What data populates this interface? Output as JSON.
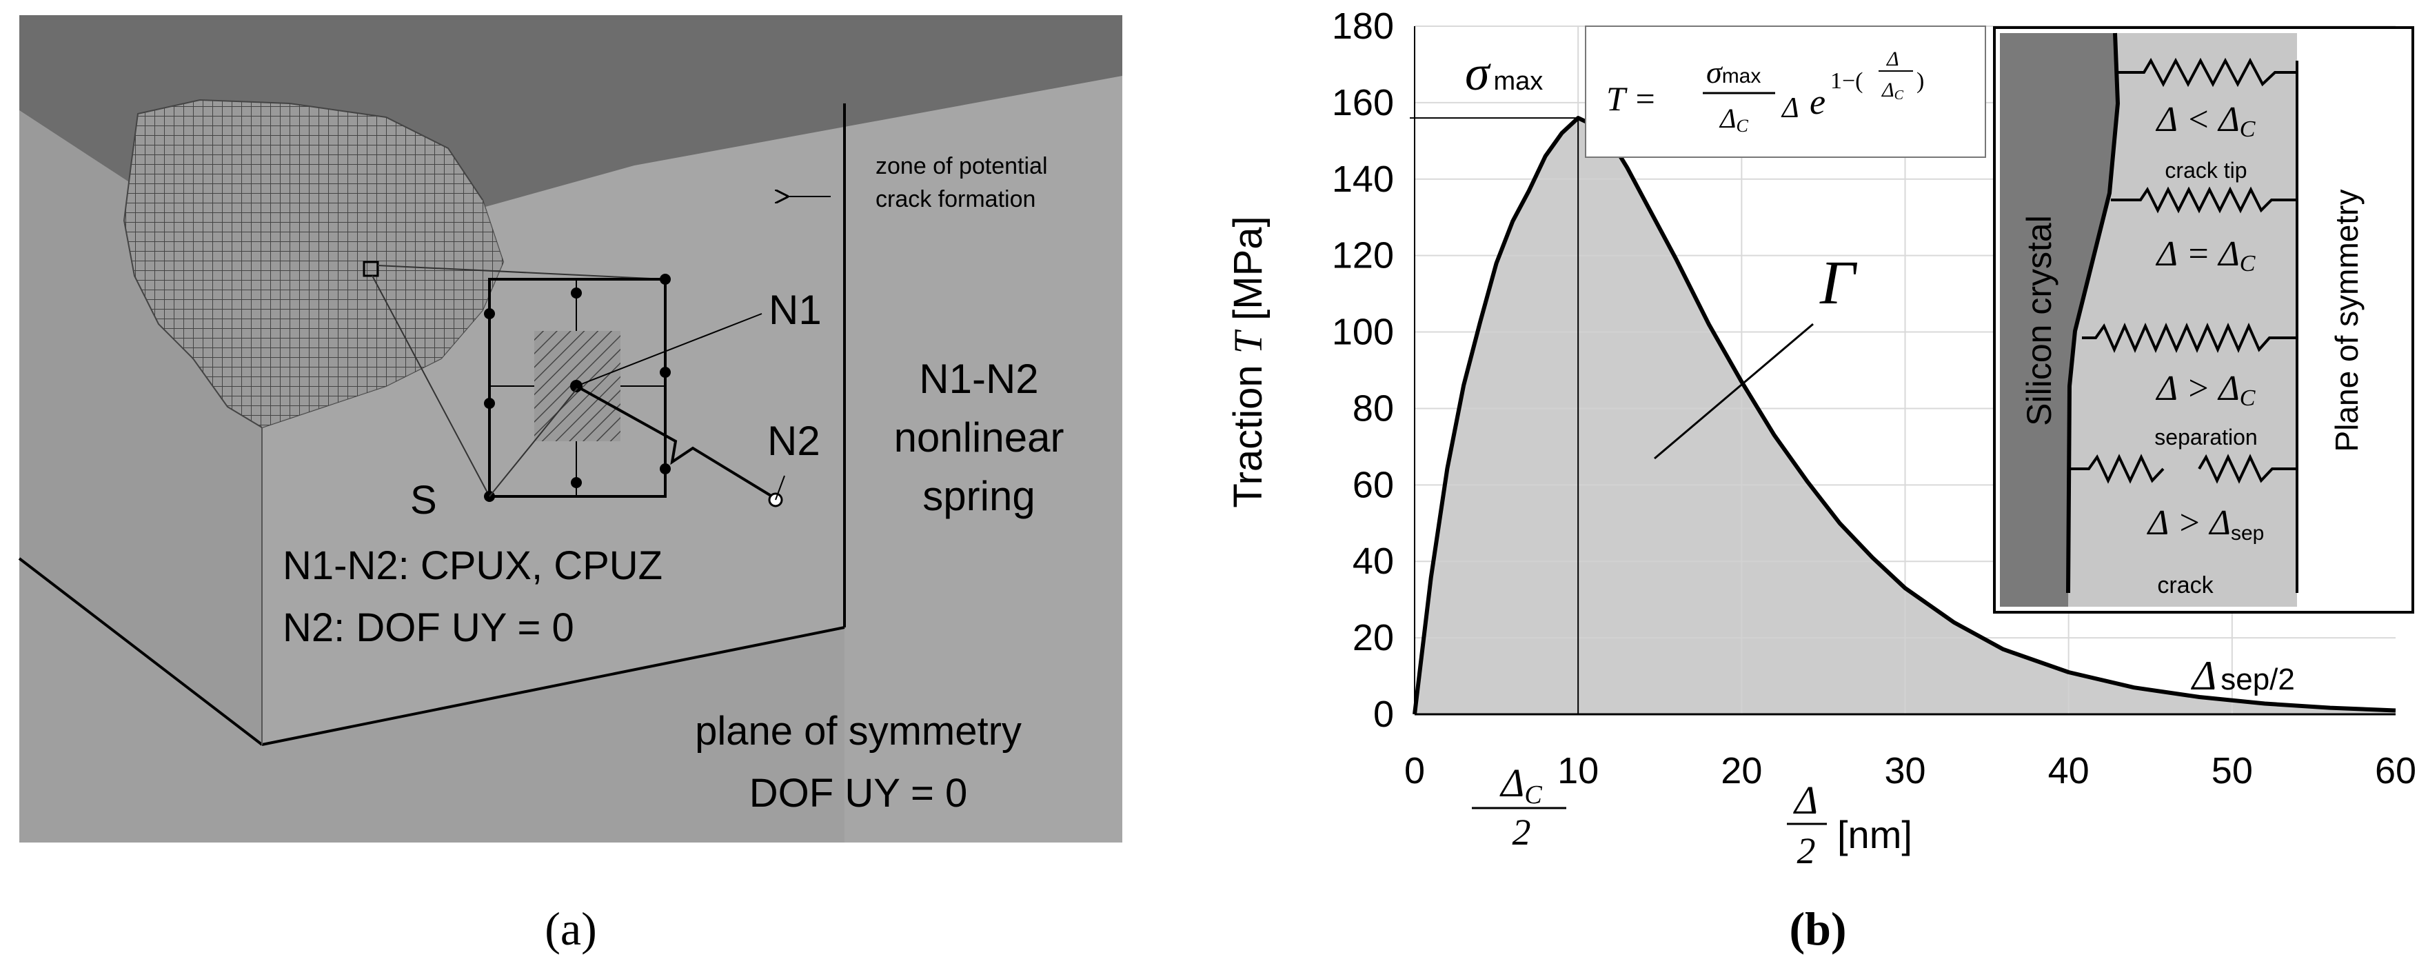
{
  "panel_a": {
    "caption": "(a)",
    "zone_note_line1": "zone of potential",
    "zone_note_line2": "crack formation",
    "node_n1": "N1",
    "node_n2": "N2",
    "node_s": "S",
    "spring_line1": "N1-N2",
    "spring_line2": "nonlinear",
    "spring_line3": "spring",
    "constraint_line1": "N1-N2: CPUX, CPUZ",
    "constraint_line2": "N2: DOF UY = 0",
    "symmetry_line1": "plane of symmetry",
    "symmetry_line2": "DOF UY  = 0",
    "colors": {
      "top_face": "#6e6e6e",
      "front_face": "#a6a6a6",
      "side_face": "#9b9b9b",
      "mesh": "#555555"
    }
  },
  "panel_b": {
    "caption": "(b)",
    "sigma_max_label": "σ",
    "sigma_max_sub": "max",
    "gamma_label": "Γ",
    "delta_sep_label": "Δ",
    "delta_sep_sub": "sep/2",
    "delta_c_tick_num": "Δ",
    "delta_c_tick_sub": "C",
    "delta_c_tick_den": "2",
    "formula": {
      "lhs": "T =",
      "num": "σ",
      "num_sub": "max",
      "den": "Δ",
      "den_sub": "C",
      "mid": "Δ",
      "base": "e",
      "exp": "1−(",
      "exp_num": "Δ",
      "exp_den": "Δ",
      "exp_den_sub": "C",
      "exp_close": ")"
    },
    "inset": {
      "crystal_label": "Silicon crystal",
      "symmetry_label": "Plane of symmetry",
      "rows": [
        {
          "relation": "Δ < Δ",
          "rel_sub": "C",
          "note": "crack tip"
        },
        {
          "relation": "Δ = Δ",
          "rel_sub": "C",
          "note": ""
        },
        {
          "relation": "Δ > Δ",
          "rel_sub": "C",
          "note": "separation"
        },
        {
          "relation": "Δ > Δ",
          "rel_sub": "sep",
          "note": "crack"
        }
      ]
    }
  },
  "chart_data": {
    "type": "area",
    "title": "",
    "xlabel": "Δ/2 [nm]",
    "ylabel": "Traction T [MPa]",
    "xlim": [
      0,
      60
    ],
    "ylim": [
      0,
      180
    ],
    "x_ticks": [
      "0",
      "10",
      "20",
      "30",
      "40",
      "50",
      "60"
    ],
    "y_ticks": [
      "0",
      "20",
      "40",
      "60",
      "80",
      "100",
      "120",
      "140",
      "160",
      "180"
    ],
    "grid": true,
    "sigma_max": 156,
    "delta_c_half": 10,
    "series": [
      {
        "x": [
          0,
          1,
          2,
          3,
          4,
          5,
          6,
          7,
          8,
          9,
          10,
          11,
          12,
          13,
          14,
          16,
          18,
          20,
          22,
          24,
          26,
          28,
          30,
          33,
          36,
          40,
          44,
          48,
          52,
          56,
          60
        ],
        "y": [
          0,
          35.7,
          64.3,
          86.1,
          102.5,
          118,
          129,
          137,
          146,
          152,
          156,
          154,
          150,
          143,
          135,
          119,
          102,
          87,
          73,
          61,
          50,
          41,
          33,
          24,
          17,
          11,
          7,
          4.5,
          2.8,
          1.7,
          1
        ]
      }
    ],
    "colors": {
      "fill": "#cccccc",
      "curve": "#000000",
      "grid": "#ffffff"
    }
  }
}
